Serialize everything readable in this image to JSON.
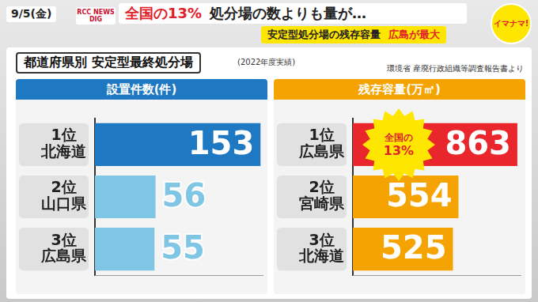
{
  "header": {
    "date": "9/5(金)",
    "logo_left": "RCC NEWS DIG",
    "logo_right": "イマナマ!",
    "headline": [
      "全国の13%",
      "処分場の数よりも量が…"
    ],
    "subheadline": [
      "安定型処分場の残存容量",
      "広島が最大"
    ],
    "title": "都道府県別 安定型最終処分場",
    "note": "(2022年度実績)",
    "source": "環境省 産廃行政組織等調査報告書より"
  },
  "chart_data": [
    {
      "type": "bar",
      "orientation": "horizontal",
      "title": "設置件数(件)",
      "categories": [
        "北海道",
        "山口県",
        "広島県"
      ],
      "ranks": [
        "1位",
        "2位",
        "3位"
      ],
      "values": [
        153,
        56,
        55
      ],
      "colors": [
        "#1e78c2",
        "#7fc6e4",
        "#7fc6e4"
      ],
      "xlim": [
        0,
        155
      ],
      "grid": false,
      "data_labels": true,
      "tick_labels": "y"
    },
    {
      "type": "bar",
      "orientation": "horizontal",
      "title": "残存容量(万㎡)",
      "categories": [
        "広島県",
        "宮崎県",
        "北海道"
      ],
      "ranks": [
        "1位",
        "2位",
        "3位"
      ],
      "values": [
        863,
        554,
        525
      ],
      "colors": [
        "#e8262b",
        "#f5a300",
        "#f5a300"
      ],
      "xlim": [
        0,
        880
      ],
      "grid": false,
      "data_labels": true,
      "tick_labels": "y",
      "annotation": [
        "全国の",
        "13%"
      ]
    }
  ]
}
